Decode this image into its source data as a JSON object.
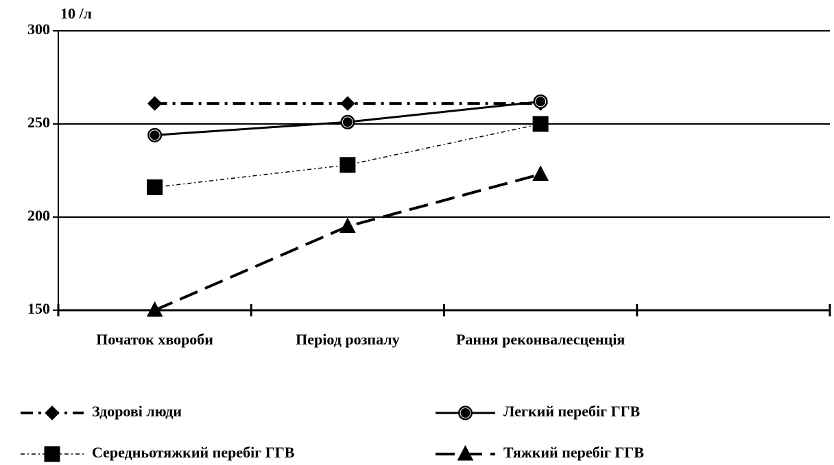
{
  "chart_data": {
    "type": "line",
    "y_label": "10 /л",
    "categories": [
      "Початок хвороби",
      "Період розпалу",
      "Рання реконвалесценція",
      null
    ],
    "series": [
      {
        "name": "Здорові люди",
        "color": "#000000",
        "marker": "diamond",
        "dash": "dashdot",
        "values": [
          261,
          261,
          261,
          null
        ]
      },
      {
        "name": "Легкий перебіг ГГВ",
        "color": "#000000",
        "marker": "circle",
        "dash": "solid",
        "values": [
          244,
          251,
          262,
          null
        ]
      },
      {
        "name": "Середньотяжкий перебіг ГГВ",
        "color": "#000000",
        "marker": "square",
        "dash": "dotted",
        "values": [
          216,
          228,
          250,
          null
        ]
      },
      {
        "name": "Тяжкий перебіг ГГВ",
        "color": "#000000",
        "marker": "triangle",
        "dash": "dashed",
        "values": [
          150,
          195,
          223,
          null
        ]
      }
    ],
    "ylim": [
      150,
      300
    ],
    "yticks": [
      150,
      200,
      250,
      300
    ],
    "grid": true,
    "legend": "bottom"
  }
}
